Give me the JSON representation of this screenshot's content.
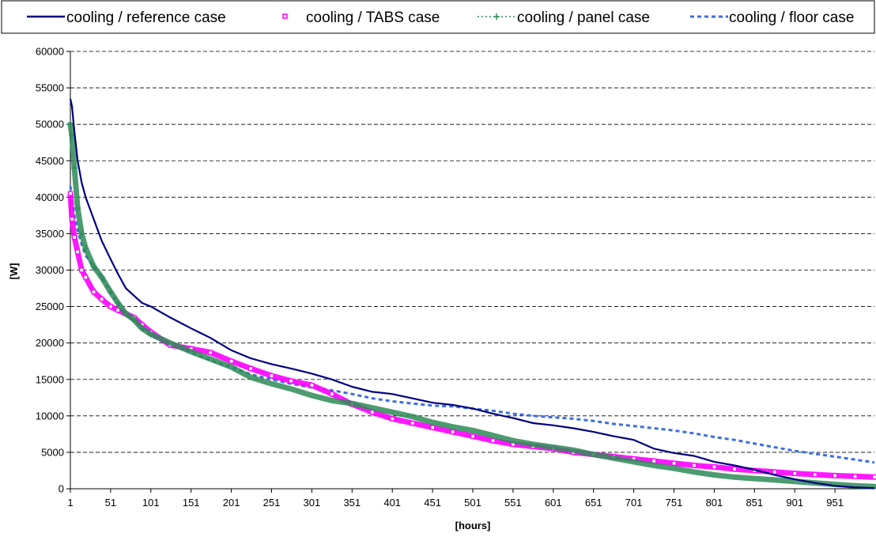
{
  "chart_data": {
    "type": "line",
    "title": "",
    "xlabel": "[hours]",
    "ylabel": "[W]",
    "xlim": [
      1,
      1000
    ],
    "ylim": [
      0,
      60000
    ],
    "y_ticks": [
      0,
      5000,
      10000,
      15000,
      20000,
      25000,
      30000,
      35000,
      40000,
      45000,
      50000,
      55000,
      60000
    ],
    "x_ticks": [
      1,
      51,
      101,
      151,
      201,
      251,
      301,
      351,
      401,
      451,
      501,
      551,
      601,
      651,
      701,
      751,
      801,
      851,
      901,
      951
    ],
    "grid": "horizontal dashed",
    "legend_position": "top",
    "series": [
      {
        "name": "cooling / reference case",
        "color": "#000080",
        "style": "solid line",
        "x": [
          1,
          3,
          6,
          10,
          15,
          20,
          30,
          40,
          51,
          60,
          70,
          80,
          90,
          101,
          125,
          151,
          175,
          201,
          225,
          251,
          275,
          301,
          326,
          351,
          376,
          401,
          426,
          451,
          476,
          501,
          526,
          551,
          576,
          601,
          626,
          651,
          676,
          701,
          726,
          751,
          776,
          801,
          826,
          851,
          876,
          901,
          926,
          951,
          976,
          1000
        ],
        "values": [
          53500,
          52500,
          49000,
          45000,
          42000,
          40000,
          37000,
          34000,
          31500,
          29500,
          27500,
          26500,
          25500,
          25000,
          23500,
          22000,
          20700,
          19000,
          17900,
          17100,
          16500,
          15800,
          15000,
          14000,
          13300,
          13000,
          12400,
          11800,
          11500,
          11000,
          10300,
          9700,
          9000,
          8700,
          8300,
          7800,
          7200,
          6700,
          5500,
          4900,
          4500,
          3700,
          3200,
          2600,
          1900,
          1300,
          800,
          400,
          200,
          100
        ]
      },
      {
        "name": "cooling / TABS case",
        "color": "#FF00FF",
        "style": "square markers",
        "x": [
          1,
          3,
          6,
          10,
          15,
          20,
          30,
          40,
          51,
          60,
          70,
          80,
          90,
          101,
          125,
          151,
          175,
          201,
          225,
          251,
          275,
          301,
          326,
          351,
          376,
          401,
          426,
          451,
          476,
          501,
          526,
          551,
          576,
          601,
          626,
          651,
          676,
          701,
          726,
          751,
          776,
          801,
          826,
          851,
          876,
          901,
          926,
          951,
          976,
          1000
        ],
        "values": [
          40500,
          37000,
          34500,
          32500,
          30000,
          29000,
          27000,
          26000,
          25000,
          24500,
          24000,
          23500,
          22500,
          21500,
          19700,
          19200,
          18700,
          17500,
          16500,
          15500,
          14800,
          14200,
          13000,
          11600,
          10500,
          9600,
          9000,
          8400,
          7800,
          7200,
          6600,
          6100,
          5800,
          5500,
          5000,
          4700,
          4400,
          4100,
          3800,
          3500,
          3200,
          3000,
          2700,
          2500,
          2300,
          2100,
          1950,
          1800,
          1700,
          1600
        ]
      },
      {
        "name": "cooling / panel case",
        "color": "#2E8B57",
        "style": "dotted line with plus markers",
        "x": [
          1,
          3,
          6,
          10,
          15,
          20,
          30,
          40,
          51,
          60,
          70,
          80,
          90,
          101,
          125,
          151,
          175,
          201,
          225,
          251,
          275,
          301,
          326,
          351,
          376,
          401,
          426,
          451,
          476,
          501,
          526,
          551,
          576,
          601,
          626,
          651,
          676,
          701,
          726,
          751,
          776,
          801,
          826,
          851,
          876,
          901,
          926,
          951,
          976,
          1000
        ],
        "values": [
          50000,
          48500,
          44000,
          38500,
          35000,
          33000,
          30500,
          29000,
          27000,
          25500,
          24000,
          23200,
          22000,
          21200,
          20000,
          18800,
          17800,
          16700,
          15300,
          14400,
          13700,
          12800,
          12100,
          11700,
          11100,
          10500,
          9900,
          9100,
          8500,
          8000,
          7300,
          6600,
          6100,
          5700,
          5300,
          4700,
          4200,
          3700,
          3200,
          2800,
          2300,
          1900,
          1600,
          1400,
          1200,
          1000,
          800,
          600,
          400,
          300
        ]
      },
      {
        "name": "cooling / floor case",
        "color": "#3A6FDB",
        "style": "dashed line",
        "x": [
          1,
          3,
          6,
          10,
          15,
          20,
          30,
          40,
          51,
          60,
          70,
          80,
          90,
          101,
          125,
          151,
          175,
          201,
          225,
          251,
          275,
          301,
          326,
          351,
          376,
          401,
          426,
          451,
          476,
          501,
          526,
          551,
          576,
          601,
          626,
          651,
          676,
          701,
          726,
          751,
          776,
          801,
          826,
          851,
          876,
          901,
          926,
          951,
          976,
          1000
        ],
        "values": [
          41500,
          40000,
          37500,
          35500,
          33500,
          32000,
          30500,
          29000,
          27000,
          25500,
          24000,
          23000,
          22000,
          21000,
          19700,
          18700,
          17600,
          16700,
          15700,
          15000,
          14400,
          13900,
          13500,
          13000,
          12400,
          12000,
          11700,
          11400,
          11300,
          11000,
          10700,
          10300,
          10000,
          9800,
          9600,
          9300,
          8900,
          8600,
          8300,
          8000,
          7600,
          7100,
          6700,
          6200,
          5700,
          5200,
          4800,
          4400,
          4000,
          3600
        ]
      }
    ]
  }
}
